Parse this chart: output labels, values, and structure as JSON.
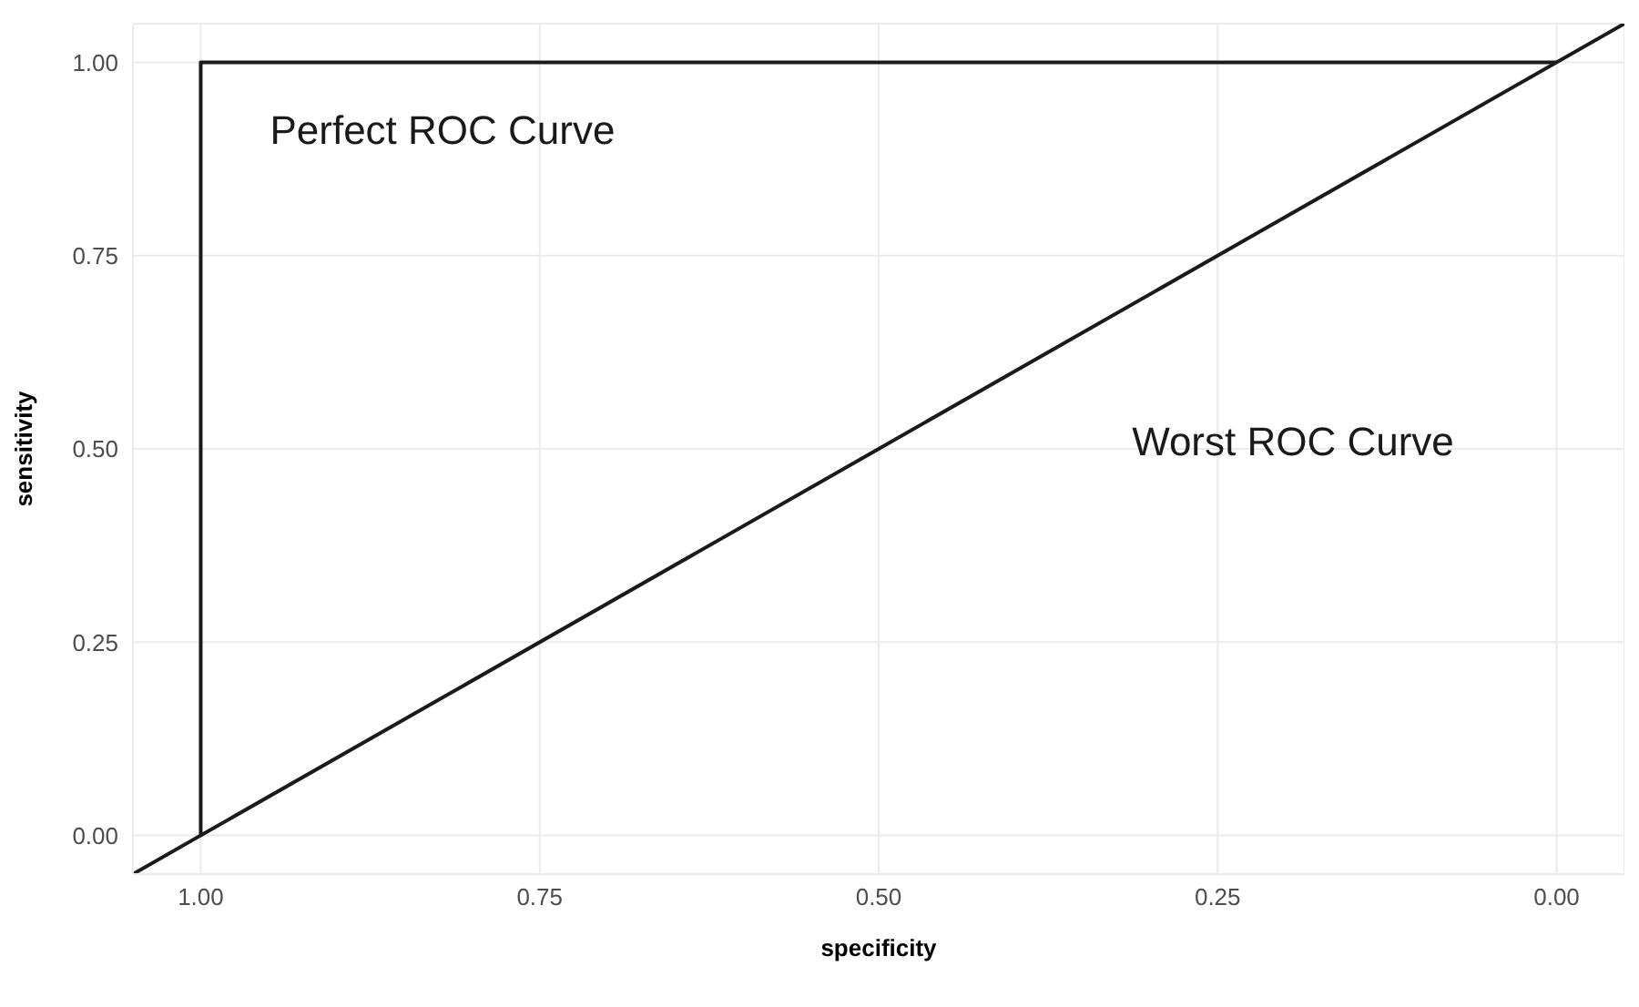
{
  "chart_data": {
    "type": "line",
    "xlabel": "specificity",
    "ylabel": "sensitivity",
    "xlim": [
      1.05,
      -0.05
    ],
    "ylim": [
      -0.05,
      1.05
    ],
    "xticks": [
      {
        "value": 1,
        "label": "1.00"
      },
      {
        "value": 0.75,
        "label": "0.75"
      },
      {
        "value": 0.5,
        "label": "0.50"
      },
      {
        "value": 0.25,
        "label": "0.25"
      },
      {
        "value": 0,
        "label": "0.00"
      }
    ],
    "yticks": [
      {
        "value": 0,
        "label": "0.00"
      },
      {
        "value": 0.25,
        "label": "0.25"
      },
      {
        "value": 0.5,
        "label": "0.50"
      },
      {
        "value": 0.75,
        "label": "0.75"
      },
      {
        "value": 1,
        "label": "1.00"
      }
    ],
    "grid": true,
    "legend": false,
    "marker": "none",
    "line_style": "solid",
    "series": [
      {
        "name": "Perfect ROC Curve",
        "color": "#1a1a1a",
        "x": [
          1,
          1,
          0
        ],
        "values": [
          0,
          1,
          1
        ]
      },
      {
        "name": "Worst ROC Curve",
        "color": "#1a1a1a",
        "x": [
          1.05,
          -0.05
        ],
        "values": [
          -0.05,
          1.05
        ]
      }
    ]
  }
}
